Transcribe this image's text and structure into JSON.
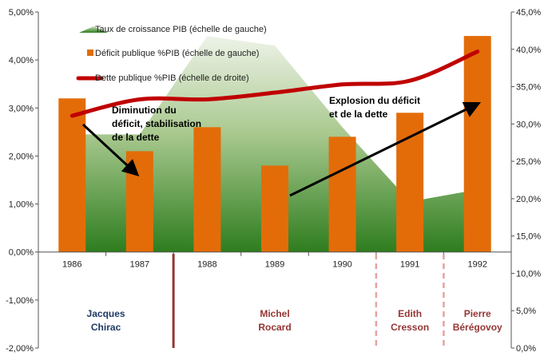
{
  "chart_data": {
    "type": "bar",
    "title": "",
    "xlabel": "",
    "ylabel": "",
    "categories": [
      "1986",
      "1987",
      "1988",
      "1989",
      "1990",
      "1991",
      "1992"
    ],
    "y_left": {
      "range": [
        -2,
        5
      ],
      "ticks": [
        "-2,00%",
        "-1,00%",
        "0,00%",
        "1,00%",
        "2,00%",
        "3,00%",
        "4,00%",
        "5,00%"
      ]
    },
    "y_right": {
      "range": [
        0,
        45
      ],
      "ticks": [
        "0,0%",
        "5,0%",
        "10,0%",
        "15,0%",
        "20,0%",
        "25,0%",
        "30,0%",
        "35,0%",
        "40,0%",
        "45,0%"
      ]
    },
    "series": [
      {
        "name": "Taux de croissance PIB (échelle de gauche)",
        "type": "area",
        "axis": "left",
        "color": "#2e7d1e",
        "values": [
          2.45,
          2.45,
          4.5,
          4.3,
          2.6,
          1.05,
          1.3
        ]
      },
      {
        "name": "Déficit publique %PIB (échelle de gauche)",
        "type": "bar",
        "axis": "left",
        "color": "#e36c09",
        "values": [
          3.2,
          2.1,
          2.6,
          1.8,
          2.4,
          2.9,
          4.5
        ]
      },
      {
        "name": "Dette publique %PIB (échelle de droite)",
        "type": "line",
        "axis": "right",
        "color": "#c00000",
        "values": [
          31.1,
          33.3,
          33.3,
          34.2,
          35.3,
          35.8,
          39.7
        ]
      }
    ],
    "annotations": [
      {
        "id": "left",
        "lines": [
          "Diminution du",
          "déficit, stabilisation",
          "de la dette"
        ]
      },
      {
        "id": "right",
        "lines": [
          "Explosion du déficit",
          "et de la dette"
        ]
      }
    ],
    "periods": [
      {
        "lines": [
          "Jacques",
          "Chirac"
        ],
        "color": "#1f3864"
      },
      {
        "lines": [
          "Michel",
          "Rocard"
        ],
        "color": "#943634"
      },
      {
        "lines": [
          "Edith",
          "Cresson"
        ],
        "color": "#943634"
      },
      {
        "lines": [
          "Pierre",
          "Bérégovoy"
        ],
        "color": "#943634"
      }
    ],
    "grid": false,
    "legend_position": "top-left"
  }
}
